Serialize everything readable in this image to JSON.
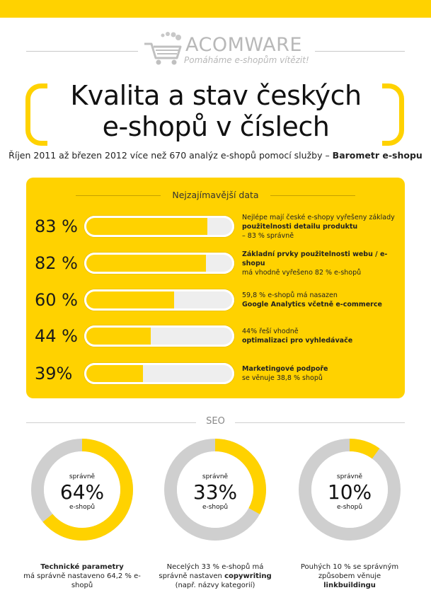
{
  "logo": {
    "name": "ACOMWARE",
    "tagline": "Pomáháme e-shopům vítězit!"
  },
  "title": {
    "line1": "Kvalita a stav českých",
    "line2": "e-shopů v číslech"
  },
  "subtitle": {
    "text": "Říjen 2011 až březen 2012 více než 670 analýz e-shopů pomocí služby –",
    "bold": "Barometr e-shopu"
  },
  "panel": {
    "title": "Nejzajímavější data",
    "rows": [
      {
        "label": "83 %",
        "pre": "Nejlépe mají české e-shopy vyřešeny základy",
        "bold": "použitelnosti detailu produktu",
        "post": "– 83 % správně"
      },
      {
        "label": "82 %",
        "pre": "",
        "bold": "Základní prvky použitelnosti webu / e-shopu",
        "post": "má vhodně vyřešeno 82 % e-shopů"
      },
      {
        "label": "60 %",
        "pre": "59,8 % e-shopů má nasazen",
        "bold": "Google Analytics včetně e-commerce",
        "post": ""
      },
      {
        "label": "44 %",
        "pre": "44% řeší vhodně",
        "bold": "optimalizaci pro vyhledávače",
        "post": ""
      },
      {
        "label": "39%",
        "pre": "",
        "bold": "Marketingové podpoře",
        "post": "se věnuje 38,8 % shopů"
      }
    ]
  },
  "seo": {
    "title": "SEO",
    "donuts": [
      {
        "top": "správně",
        "value": "64%",
        "bottom": "e-shopů",
        "cap_pre": "",
        "cap_bold": "Technické parametry",
        "cap_post": "má správně nastaveno  64,2 % e-shopů"
      },
      {
        "top": "správně",
        "value": "33%",
        "bottom": "e-shopů",
        "cap_pre": "Necelých 33 % e-shopů má správně nastaven",
        "cap_bold": "copywriting",
        "cap_post": "(např. názvy kategorií)"
      },
      {
        "top": "správně",
        "value": "10%",
        "bottom": "e-shopů",
        "cap_pre": "Pouhých 10 % se správným způsobem věnuje",
        "cap_bold": "linkbuildingu",
        "cap_post": ""
      }
    ]
  },
  "chart_data": [
    {
      "type": "bar",
      "categories": [
        "83 %",
        "82 %",
        "60 %",
        "44 %",
        "39%"
      ],
      "values": [
        83,
        82,
        60,
        44,
        39
      ],
      "ylim": [
        0,
        100
      ]
    },
    {
      "type": "pie",
      "categories": [
        "64%",
        "33%",
        "10%"
      ],
      "values": [
        64,
        33,
        10
      ]
    }
  ],
  "colors": {
    "accent": "#ffd200",
    "track": "#e6e6e6",
    "ring_bg": "#cfcfcf"
  }
}
